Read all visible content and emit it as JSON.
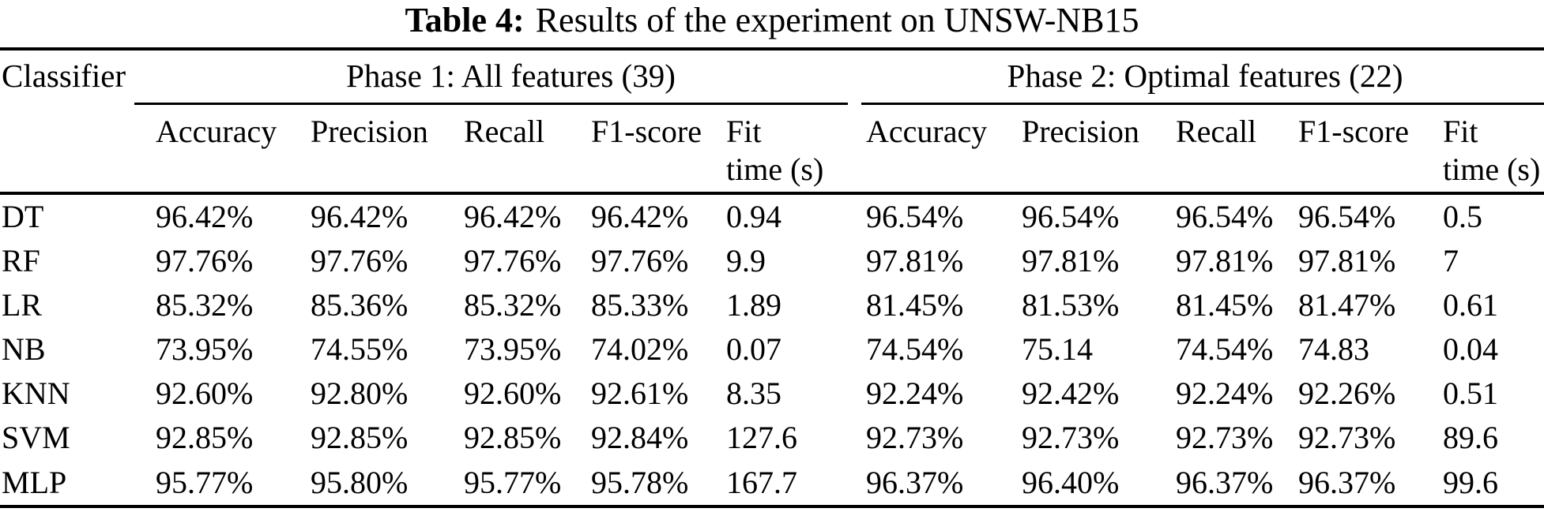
{
  "caption": {
    "label": "Table 4:",
    "text": "Results of the experiment on UNSW-NB15"
  },
  "colors": {
    "text": "#000000",
    "background": "#ffffff"
  },
  "table": {
    "classifier_header": "Classifier",
    "groups": [
      {
        "label": "Phase 1: All features (39)",
        "metrics": [
          "Accuracy",
          "Precision",
          "Recall",
          "F1-score"
        ],
        "fit_time": [
          "Fit",
          "time (s)"
        ]
      },
      {
        "label": "Phase 2: Optimal features (22)",
        "metrics": [
          "Accuracy",
          "Precision",
          "Recall",
          "F1-score"
        ],
        "fit_time": [
          "Fit",
          "time (s)"
        ]
      }
    ],
    "rows": [
      {
        "classifier": "DT",
        "phase1": [
          "96.42%",
          "96.42%",
          "96.42%",
          "96.42%",
          "0.94"
        ],
        "phase2": [
          "96.54%",
          "96.54%",
          "96.54%",
          "96.54%",
          "0.5"
        ]
      },
      {
        "classifier": "RF",
        "phase1": [
          "97.76%",
          "97.76%",
          "97.76%",
          "97.76%",
          "9.9"
        ],
        "phase2": [
          "97.81%",
          "97.81%",
          "97.81%",
          "97.81%",
          "7"
        ]
      },
      {
        "classifier": "LR",
        "phase1": [
          "85.32%",
          "85.36%",
          "85.32%",
          "85.33%",
          "1.89"
        ],
        "phase2": [
          "81.45%",
          "81.53%",
          "81.45%",
          "81.47%",
          "0.61"
        ]
      },
      {
        "classifier": "NB",
        "phase1": [
          "73.95%",
          "74.55%",
          "73.95%",
          "74.02%",
          "0.07"
        ],
        "phase2": [
          "74.54%",
          "75.14",
          "74.54%",
          "74.83",
          "0.04"
        ]
      },
      {
        "classifier": "KNN",
        "phase1": [
          "92.60%",
          "92.80%",
          "92.60%",
          "92.61%",
          "8.35"
        ],
        "phase2": [
          "92.24%",
          "92.42%",
          "92.24%",
          "92.26%",
          "0.51"
        ]
      },
      {
        "classifier": "SVM",
        "phase1": [
          "92.85%",
          "92.85%",
          "92.85%",
          "92.84%",
          "127.6"
        ],
        "phase2": [
          "92.73%",
          "92.73%",
          "92.73%",
          "92.73%",
          "89.6"
        ]
      },
      {
        "classifier": "MLP",
        "phase1": [
          "95.77%",
          "95.80%",
          "95.77%",
          "95.78%",
          "167.7"
        ],
        "phase2": [
          "96.37%",
          "96.40%",
          "96.37%",
          "96.37%",
          "99.6"
        ]
      }
    ]
  }
}
